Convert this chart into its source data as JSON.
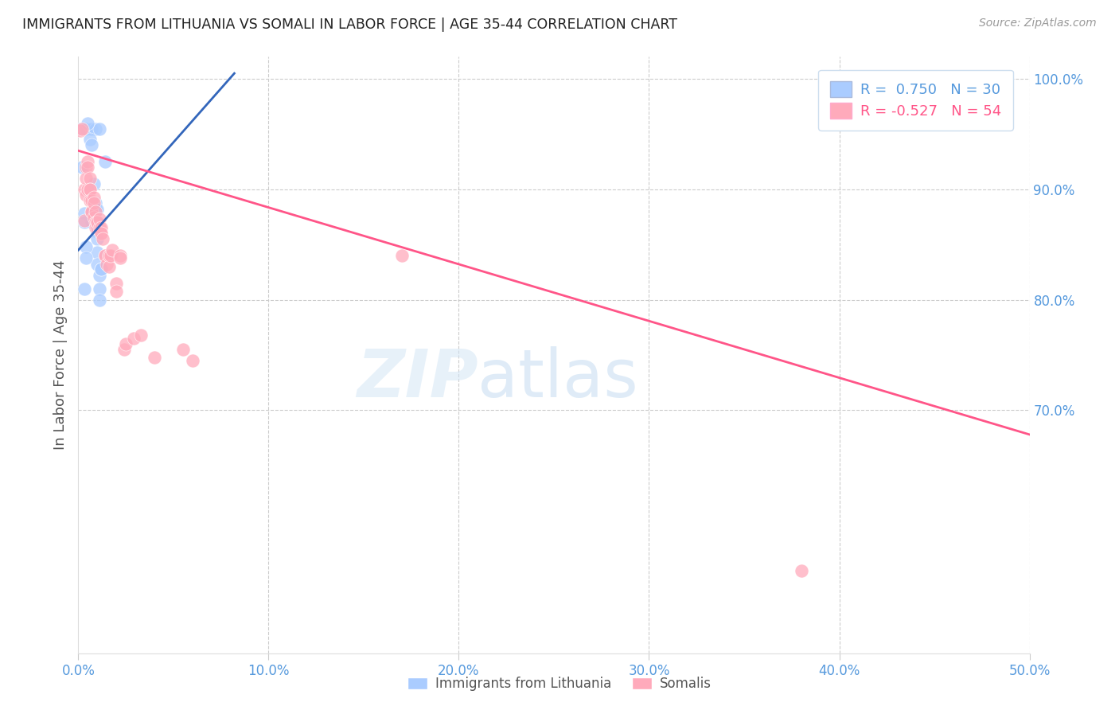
{
  "title": "IMMIGRANTS FROM LITHUANIA VS SOMALI IN LABOR FORCE | AGE 35-44 CORRELATION CHART",
  "source": "Source: ZipAtlas.com",
  "ylabel": "In Labor Force | Age 35-44",
  "watermark": "ZIPatlas",
  "bottom_legend": [
    "Immigrants from Lithuania",
    "Somalis"
  ],
  "xlim": [
    0.0,
    0.5
  ],
  "ylim": [
    0.48,
    1.02
  ],
  "ytick_positions": [
    0.7,
    0.8,
    0.9,
    1.0
  ],
  "ytick_labels": [
    "70.0%",
    "80.0%",
    "90.0%",
    "100.0%"
  ],
  "xticks": [
    0.0,
    0.1,
    0.2,
    0.3,
    0.4,
    0.5
  ],
  "title_color": "#222222",
  "axis_color": "#5599dd",
  "background_color": "#ffffff",
  "grid_color": "#cccccc",
  "lithuania_color": "#aaccff",
  "somali_color": "#ffaabb",
  "lithuania_line_color": "#3366bb",
  "somali_line_color": "#ff5588",
  "lithuania_points": [
    [
      0.001,
      0.955
    ],
    [
      0.004,
      0.955
    ],
    [
      0.007,
      0.955
    ],
    [
      0.009,
      0.955
    ],
    [
      0.011,
      0.955
    ],
    [
      0.014,
      0.925
    ],
    [
      0.002,
      0.92
    ],
    [
      0.005,
      0.96
    ],
    [
      0.006,
      0.945
    ],
    [
      0.007,
      0.94
    ],
    [
      0.007,
      0.87
    ],
    [
      0.008,
      0.905
    ],
    [
      0.009,
      0.888
    ],
    [
      0.009,
      0.882
    ],
    [
      0.01,
      0.882
    ],
    [
      0.01,
      0.87
    ],
    [
      0.01,
      0.862
    ],
    [
      0.01,
      0.855
    ],
    [
      0.01,
      0.843
    ],
    [
      0.01,
      0.832
    ],
    [
      0.011,
      0.822
    ],
    [
      0.011,
      0.81
    ],
    [
      0.011,
      0.8
    ],
    [
      0.012,
      0.828
    ],
    [
      0.012,
      0.828
    ],
    [
      0.003,
      0.878
    ],
    [
      0.003,
      0.87
    ],
    [
      0.004,
      0.848
    ],
    [
      0.004,
      0.838
    ],
    [
      0.003,
      0.81
    ]
  ],
  "somali_points": [
    [
      0.001,
      0.953
    ],
    [
      0.002,
      0.955
    ],
    [
      0.003,
      0.9
    ],
    [
      0.003,
      0.872
    ],
    [
      0.004,
      0.92
    ],
    [
      0.004,
      0.91
    ],
    [
      0.004,
      0.895
    ],
    [
      0.005,
      0.925
    ],
    [
      0.005,
      0.92
    ],
    [
      0.005,
      0.9
    ],
    [
      0.006,
      0.91
    ],
    [
      0.006,
      0.9
    ],
    [
      0.006,
      0.9
    ],
    [
      0.006,
      0.89
    ],
    [
      0.007,
      0.89
    ],
    [
      0.007,
      0.88
    ],
    [
      0.007,
      0.88
    ],
    [
      0.008,
      0.893
    ],
    [
      0.008,
      0.888
    ],
    [
      0.008,
      0.875
    ],
    [
      0.009,
      0.88
    ],
    [
      0.009,
      0.87
    ],
    [
      0.009,
      0.865
    ],
    [
      0.01,
      0.87
    ],
    [
      0.01,
      0.87
    ],
    [
      0.01,
      0.865
    ],
    [
      0.01,
      0.87
    ],
    [
      0.011,
      0.865
    ],
    [
      0.011,
      0.873
    ],
    [
      0.012,
      0.86
    ],
    [
      0.012,
      0.865
    ],
    [
      0.012,
      0.86
    ],
    [
      0.013,
      0.855
    ],
    [
      0.014,
      0.84
    ],
    [
      0.014,
      0.84
    ],
    [
      0.015,
      0.832
    ],
    [
      0.016,
      0.84
    ],
    [
      0.016,
      0.84
    ],
    [
      0.016,
      0.83
    ],
    [
      0.017,
      0.84
    ],
    [
      0.018,
      0.845
    ],
    [
      0.02,
      0.815
    ],
    [
      0.02,
      0.808
    ],
    [
      0.022,
      0.84
    ],
    [
      0.022,
      0.838
    ],
    [
      0.024,
      0.755
    ],
    [
      0.025,
      0.76
    ],
    [
      0.029,
      0.765
    ],
    [
      0.033,
      0.768
    ],
    [
      0.04,
      0.748
    ],
    [
      0.055,
      0.755
    ],
    [
      0.06,
      0.745
    ],
    [
      0.17,
      0.84
    ],
    [
      0.38,
      0.555
    ]
  ],
  "lithuania_line": {
    "x0": 0.0,
    "y0": 0.845,
    "x1": 0.082,
    "y1": 1.005
  },
  "somali_line": {
    "x0": 0.0,
    "y0": 0.935,
    "x1": 0.5,
    "y1": 0.678
  },
  "legend_lith_label": "R =  0.750   N = 30",
  "legend_som_label": "R = -0.527   N = 54"
}
